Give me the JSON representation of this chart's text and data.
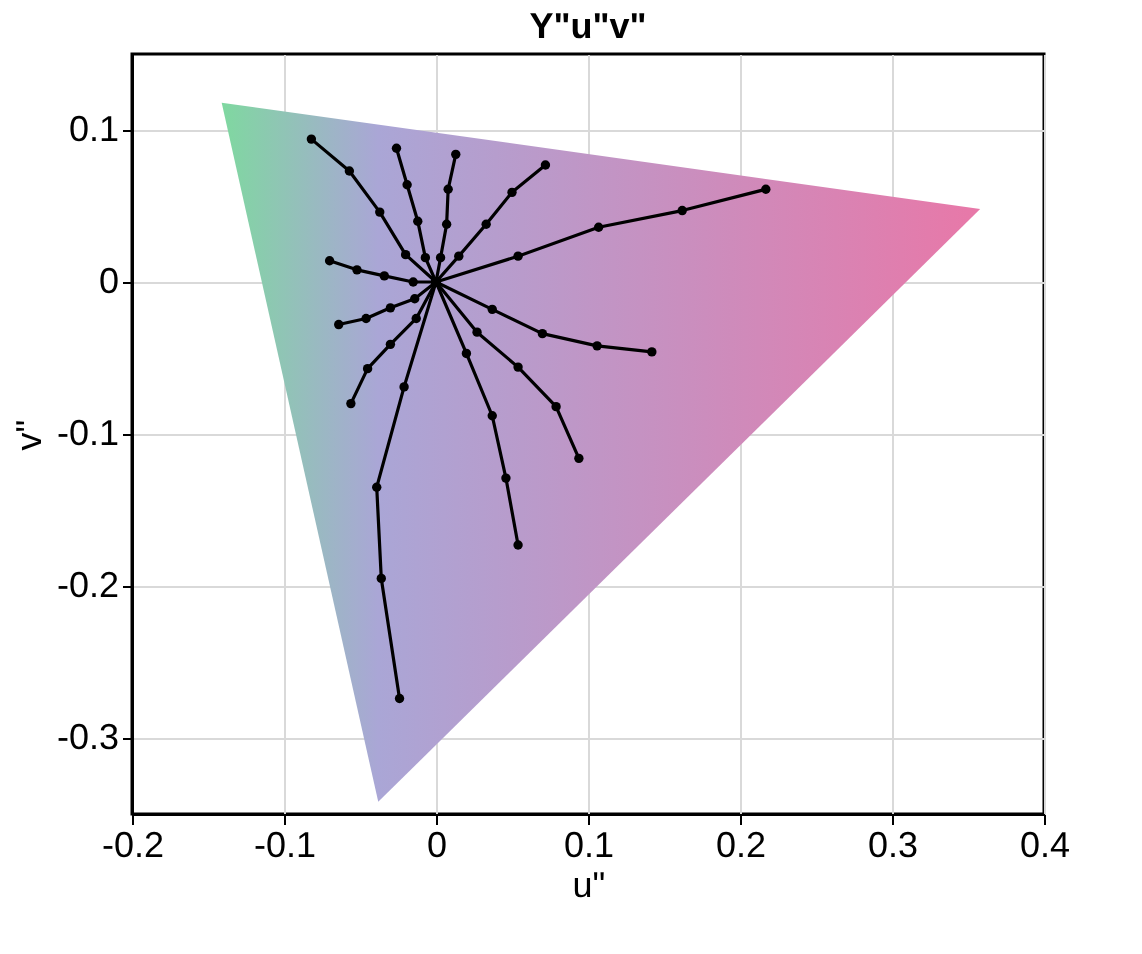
{
  "chart_data": {
    "type": "line",
    "title": "Y\"u\"v\"",
    "xlabel": "u\"",
    "ylabel": "v\"",
    "xlim": [
      -0.2,
      0.4
    ],
    "ylim": [
      -0.35,
      0.15
    ],
    "xticks": [
      -0.2,
      -0.1,
      0,
      0.1,
      0.2,
      0.3,
      0.4
    ],
    "yticks": [
      -0.3,
      -0.2,
      -0.1,
      0,
      0.1
    ],
    "grid": true,
    "marker": "circle",
    "line_style": "solid",
    "series": [
      {
        "type": "area",
        "marker": "none",
        "colors": [
          "#7fd8a0",
          "#e878a8",
          "#aaa6d6"
        ],
        "x": [
          -0.141,
          0.358,
          -0.038
        ],
        "values": [
          0.118,
          0.048,
          -0.342
        ]
      },
      {
        "color": "#000000",
        "x": [
          0,
          -0.02,
          -0.037,
          -0.057,
          -0.082
        ],
        "values": [
          0,
          0.018,
          0.046,
          0.073,
          0.094
        ]
      },
      {
        "color": "#000000",
        "x": [
          0,
          -0.007,
          -0.012,
          -0.019,
          -0.026
        ],
        "values": [
          0,
          0.016,
          0.04,
          0.064,
          0.088
        ]
      },
      {
        "color": "#000000",
        "x": [
          0,
          0.003,
          0.007,
          0.008,
          0.013
        ],
        "values": [
          0,
          0.016,
          0.038,
          0.061,
          0.084
        ]
      },
      {
        "color": "#000000",
        "x": [
          0,
          0.015,
          0.033,
          0.05,
          0.072
        ],
        "values": [
          0,
          0.017,
          0.038,
          0.059,
          0.077
        ]
      },
      {
        "color": "#000000",
        "x": [
          0,
          0.054,
          0.107,
          0.162,
          0.217
        ],
        "values": [
          0,
          0.017,
          0.036,
          0.047,
          0.061
        ]
      },
      {
        "color": "#000000",
        "x": [
          0,
          0.037,
          0.07,
          0.106,
          0.142
        ],
        "values": [
          0,
          -0.018,
          -0.034,
          -0.042,
          -0.046
        ]
      },
      {
        "color": "#000000",
        "x": [
          0,
          0.027,
          0.054,
          0.079,
          0.094
        ],
        "values": [
          0,
          -0.033,
          -0.056,
          -0.082,
          -0.116
        ]
      },
      {
        "color": "#000000",
        "x": [
          0,
          0.02,
          0.037,
          0.046,
          0.054
        ],
        "values": [
          0,
          -0.047,
          -0.088,
          -0.129,
          -0.173
        ]
      },
      {
        "color": "#000000",
        "x": [
          0,
          -0.021,
          -0.039,
          -0.036,
          -0.024
        ],
        "values": [
          0,
          -0.069,
          -0.135,
          -0.195,
          -0.274
        ]
      },
      {
        "color": "#000000",
        "x": [
          0,
          -0.013,
          -0.03,
          -0.045,
          -0.056
        ],
        "values": [
          0,
          -0.024,
          -0.041,
          -0.057,
          -0.08
        ]
      },
      {
        "color": "#000000",
        "x": [
          0,
          -0.014,
          -0.03,
          -0.046,
          -0.064
        ],
        "values": [
          0,
          -0.011,
          -0.017,
          -0.024,
          -0.028
        ]
      },
      {
        "color": "#000000",
        "x": [
          0,
          -0.015,
          -0.034,
          -0.052,
          -0.07
        ],
        "values": [
          0,
          0.0,
          0.004,
          0.008,
          0.014
        ]
      }
    ]
  }
}
